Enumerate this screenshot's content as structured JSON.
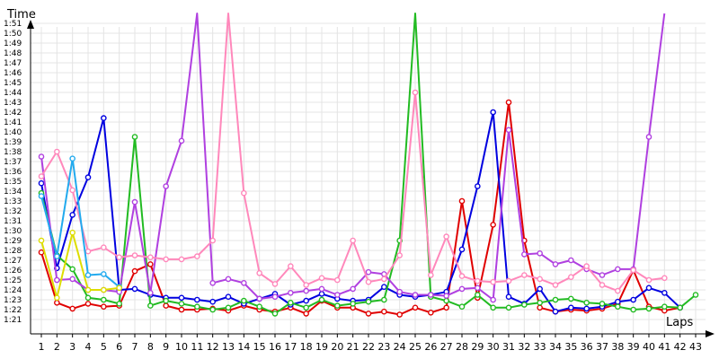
{
  "chart_data": {
    "type": "line",
    "xlabel": "Laps",
    "ylabel": "Time",
    "x": [
      1,
      2,
      3,
      4,
      5,
      6,
      7,
      8,
      9,
      10,
      11,
      12,
      13,
      14,
      15,
      16,
      17,
      18,
      19,
      20,
      21,
      22,
      23,
      24,
      25,
      26,
      27,
      28,
      29,
      30,
      31,
      32,
      33,
      34,
      35,
      36,
      37,
      38,
      39,
      40,
      41,
      42,
      43
    ],
    "xlim": [
      1,
      43
    ],
    "ylim": [
      80,
      112
    ],
    "yticks": [
      {
        "value": 81,
        "label": "1:21"
      },
      {
        "value": 82,
        "label": "1:22"
      },
      {
        "value": 83,
        "label": "1:23"
      },
      {
        "value": 84,
        "label": "1:24"
      },
      {
        "value": 85,
        "label": "1:25"
      },
      {
        "value": 86,
        "label": "1:26"
      },
      {
        "value": 87,
        "label": "1:27"
      },
      {
        "value": 88,
        "label": "1:28"
      },
      {
        "value": 89,
        "label": "1:29"
      },
      {
        "value": 90,
        "label": "1:30"
      },
      {
        "value": 91,
        "label": "1:31"
      },
      {
        "value": 92,
        "label": "1:32"
      },
      {
        "value": 93,
        "label": "1:33"
      },
      {
        "value": 94,
        "label": "1:34"
      },
      {
        "value": 95,
        "label": "1:35"
      },
      {
        "value": 96,
        "label": "1:36"
      },
      {
        "value": 97,
        "label": "1:37"
      },
      {
        "value": 98,
        "label": "1:38"
      },
      {
        "value": 99,
        "label": "1:39"
      },
      {
        "value": 100,
        "label": "1:40"
      },
      {
        "value": 101,
        "label": "1:41"
      },
      {
        "value": 102,
        "label": "1:42"
      },
      {
        "value": 103,
        "label": "1:43"
      },
      {
        "value": 104,
        "label": "1:44"
      },
      {
        "value": 105,
        "label": "1:45"
      },
      {
        "value": 106,
        "label": "1:46"
      },
      {
        "value": 107,
        "label": "1:47"
      },
      {
        "value": 108,
        "label": "1:48"
      },
      {
        "value": 109,
        "label": "1:49"
      },
      {
        "value": 110,
        "label": "1:50"
      },
      {
        "value": 111,
        "label": "1:51"
      }
    ],
    "grid": true,
    "legend": "none",
    "series": [
      {
        "color": "#e00000",
        "values": [
          87.8,
          82.7,
          82.1,
          82.6,
          82.3,
          82.4,
          85.9,
          86.6,
          82.4,
          82.0,
          82.0,
          82.1,
          81.9,
          82.4,
          82.0,
          81.8,
          82.2,
          81.6,
          82.9,
          82.2,
          82.2,
          81.6,
          81.8,
          81.5,
          82.2,
          81.7,
          82.2,
          93.0,
          83.2,
          90.6,
          103.0,
          89.0,
          82.2,
          81.8,
          82.0,
          81.9,
          82.1,
          82.6,
          86.0,
          82.3,
          81.9,
          82.2,
          null
        ]
      },
      {
        "color": "#0000e0",
        "values": [
          94.8,
          86.2,
          91.6,
          95.4,
          101.4,
          84.0,
          84.1,
          83.5,
          83.2,
          83.2,
          83.0,
          82.8,
          83.3,
          82.6,
          83.1,
          83.6,
          82.5,
          82.9,
          83.6,
          83.1,
          82.9,
          83.0,
          84.3,
          83.5,
          83.3,
          83.5,
          83.8,
          88.1,
          94.5,
          102.0,
          83.3,
          82.6,
          84.1,
          81.8,
          82.2,
          82.1,
          82.3,
          82.8,
          83.0,
          84.2,
          83.7,
          82.2,
          null
        ]
      },
      {
        "color": "#22bb22",
        "values": [
          93.8,
          87.5,
          86.1,
          83.2,
          83.0,
          82.6,
          99.5,
          82.4,
          82.9,
          82.6,
          82.3,
          82.0,
          82.2,
          82.9,
          82.3,
          81.6,
          82.7,
          82.2,
          83.0,
          82.4,
          82.6,
          82.8,
          83.0,
          89.0,
          112.0,
          83.3,
          82.9,
          82.3,
          83.5,
          82.2,
          82.2,
          82.5,
          82.7,
          83.0,
          83.1,
          82.7,
          82.6,
          82.3,
          82.0,
          82.1,
          82.3,
          82.2,
          83.5
        ]
      },
      {
        "color": "#b040e0",
        "values": [
          97.5,
          85.0,
          85.1,
          84.0,
          84.0,
          83.8,
          92.9,
          83.7,
          94.5,
          99.1,
          112.0,
          84.7,
          85.1,
          84.7,
          83.1,
          83.3,
          83.7,
          83.9,
          84.1,
          83.5,
          84.1,
          85.8,
          85.6,
          83.8,
          83.5,
          83.5,
          83.4,
          84.1,
          84.2,
          83.0,
          100.2,
          87.6,
          87.7,
          86.6,
          87.0,
          86.1,
          85.5,
          86.1,
          86.1,
          99.5,
          112.0,
          null,
          null
        ]
      },
      {
        "color": "#ff88bb",
        "values": [
          95.5,
          98.0,
          94.1,
          87.9,
          88.3,
          87.3,
          87.5,
          87.3,
          87.1,
          87.1,
          87.4,
          89.0,
          112.0,
          93.8,
          85.7,
          84.6,
          86.4,
          84.5,
          85.2,
          85.0,
          89.0,
          84.8,
          85.1,
          87.5,
          104.0,
          85.5,
          89.4,
          85.4,
          84.9,
          84.8,
          84.9,
          85.5,
          85.1,
          84.5,
          85.3,
          86.4,
          84.5,
          83.9,
          86.0,
          85.0,
          85.2,
          null,
          null
        ]
      },
      {
        "color": "#22aaee",
        "values": [
          93.5,
          87.4,
          97.3,
          85.5,
          85.6,
          84.3,
          null,
          null,
          null,
          null,
          null,
          null,
          null,
          null,
          null,
          null,
          null,
          null,
          null,
          null,
          null,
          null,
          null,
          null,
          null,
          null,
          null,
          null,
          null,
          null,
          null,
          null,
          null,
          null,
          null,
          null,
          null,
          null,
          null,
          null,
          null,
          null,
          null
        ]
      },
      {
        "color": "#dddd00",
        "values": [
          89.0,
          83.2,
          89.8,
          84.0,
          84.0,
          84.2,
          null,
          null,
          null,
          null,
          null,
          null,
          null,
          null,
          null,
          null,
          null,
          null,
          null,
          null,
          null,
          null,
          null,
          null,
          null,
          null,
          null,
          null,
          null,
          null,
          null,
          null,
          null,
          null,
          null,
          null,
          null,
          null,
          null,
          null,
          null,
          null,
          null
        ]
      }
    ]
  }
}
